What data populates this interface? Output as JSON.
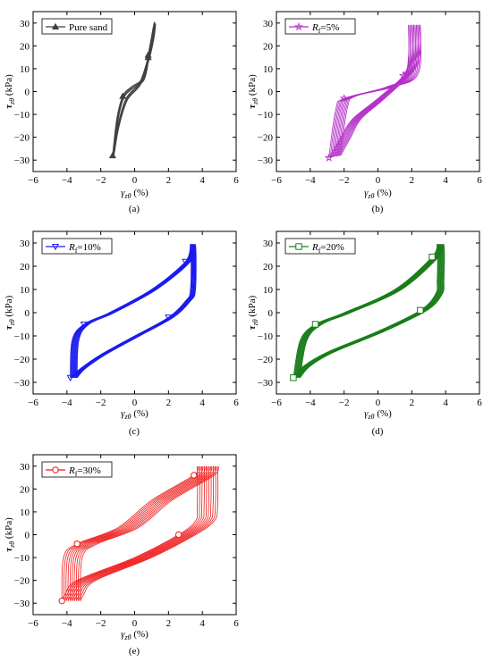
{
  "chart_data": [
    {
      "type": "line",
      "panel": "(a)",
      "caption": "(a)",
      "legend": "Pure sand",
      "color": "#404040",
      "marker": "triangle",
      "xlabel": "γzθ (%)",
      "ylabel": "τzθ (kPa)",
      "xlim": [
        -6,
        6
      ],
      "ylim": [
        -35,
        35
      ],
      "xticks": [
        -6,
        -4,
        -2,
        0,
        2,
        4,
        6
      ],
      "yticks": [
        -30,
        -20,
        -10,
        0,
        10,
        20,
        30
      ],
      "loops": 3,
      "series": [
        {
          "x": [
            -1.3,
            -1.0,
            -0.5,
            0.3,
            0.8,
            1.1,
            1.15,
            0.8,
            0.5,
            -0.2,
            -0.7,
            -1.05,
            -1.3
          ],
          "y": [
            -28,
            -15,
            -3,
            4,
            15,
            25,
            30,
            16,
            6,
            2,
            -2,
            -12,
            -28
          ]
        }
      ]
    },
    {
      "type": "line",
      "panel": "(b)",
      "caption": "(b)",
      "legend": "Rf=5%",
      "color": "#b530c8",
      "marker": "star",
      "xlabel": "γzθ (%)",
      "ylabel": "τzθ (kPa)",
      "xlim": [
        -6,
        6
      ],
      "ylim": [
        -35,
        35
      ],
      "xticks": [
        -6,
        -4,
        -2,
        0,
        2,
        4,
        6
      ],
      "yticks": [
        -30,
        -20,
        -10,
        0,
        10,
        20,
        30
      ],
      "loops": 10,
      "loop_start": {
        "x": [
          -2.9,
          -2.2,
          -1.5,
          0.0,
          1.5,
          1.8,
          1.8,
          1.7,
          0.5,
          -2.0,
          -2.5,
          -2.9
        ],
        "y": [
          -29,
          -20,
          -12,
          -3,
          7,
          15,
          29,
          8,
          2,
          -3,
          -8,
          -29
        ]
      },
      "loop_end": {
        "x": [
          -2.2,
          -1.6,
          -1.0,
          0.4,
          2.1,
          2.5,
          2.5,
          2.4,
          0.9,
          -1.3,
          -1.8,
          -2.2
        ],
        "y": [
          -28,
          -20,
          -12,
          -3,
          9,
          17,
          29,
          8,
          2,
          -2,
          -7,
          -28
        ]
      }
    },
    {
      "type": "line",
      "panel": "(c)",
      "caption": "(c)",
      "legend": "Rf=10%",
      "color": "#1c1cf0",
      "marker": "triangle-down",
      "xlabel": "γzθ (%)",
      "ylabel": "τzθ (kPa)",
      "xlim": [
        -6,
        6
      ],
      "ylim": [
        -35,
        35
      ],
      "xticks": [
        -6,
        -4,
        -2,
        0,
        2,
        4,
        6
      ],
      "yticks": [
        -30,
        -20,
        -10,
        0,
        10,
        20,
        30
      ],
      "loops": 12,
      "loop_start": {
        "x": [
          -3.8,
          -3.2,
          -2.0,
          0.0,
          2.0,
          3.0,
          3.3,
          3.3,
          3.0,
          1.0,
          -1.5,
          -3.0,
          -3.7,
          -3.8
        ],
        "y": [
          -28,
          -24,
          -18,
          -10,
          -2,
          5,
          10,
          29,
          22,
          10,
          0,
          -5,
          -12,
          -28
        ]
      },
      "loop_end": {
        "x": [
          -3.4,
          -2.9,
          -1.7,
          0.3,
          2.3,
          3.3,
          3.6,
          3.6,
          3.3,
          1.3,
          -1.2,
          -2.7,
          -3.3,
          -3.4
        ],
        "y": [
          -28,
          -24,
          -18,
          -10,
          -2,
          5,
          10,
          29,
          22,
          10,
          0,
          -5,
          -12,
          -28
        ]
      }
    },
    {
      "type": "line",
      "panel": "(d)",
      "caption": "(d)",
      "legend": "Rf=20%",
      "color": "#1a7d1a",
      "marker": "square",
      "xlabel": "γzθ (%)",
      "ylabel": "τzθ (kPa)",
      "xlim": [
        -6,
        6
      ],
      "ylim": [
        -35,
        35
      ],
      "xticks": [
        -6,
        -4,
        -2,
        0,
        2,
        4,
        6
      ],
      "yticks": [
        -30,
        -20,
        -10,
        0,
        10,
        20,
        30
      ],
      "loops": 12,
      "loop_start": {
        "x": [
          -5.0,
          -4.4,
          -3.0,
          0.0,
          2.5,
          3.4,
          3.5,
          3.5,
          3.2,
          1.0,
          -2.0,
          -3.7,
          -4.6,
          -5.0
        ],
        "y": [
          -28,
          -23,
          -17,
          -8,
          1,
          8,
          14,
          29,
          24,
          10,
          0,
          -5,
          -12,
          -28
        ]
      },
      "loop_end": {
        "x": [
          -4.6,
          -4.0,
          -2.6,
          0.4,
          2.9,
          3.8,
          3.9,
          3.9,
          3.6,
          1.4,
          -1.6,
          -3.3,
          -4.2,
          -4.6
        ],
        "y": [
          -28,
          -23,
          -17,
          -8,
          1,
          8,
          14,
          29,
          24,
          10,
          0,
          -5,
          -12,
          -28
        ]
      }
    },
    {
      "type": "line",
      "panel": "(e)",
      "caption": "(e)",
      "legend": "Rf=30%",
      "color": "#f01818",
      "marker": "circle",
      "xlabel": "γzθ (%)",
      "ylabel": "τzθ (kPa)",
      "xlim": [
        -6,
        6
      ],
      "ylim": [
        -35,
        35
      ],
      "xticks": [
        -6,
        -4,
        -2,
        0,
        2,
        4,
        6
      ],
      "yticks": [
        -30,
        -20,
        -10,
        0,
        10,
        20,
        30
      ],
      "loops": 10,
      "loop_start": {
        "x": [
          -4.3,
          -4.1,
          -3.4,
          0.0,
          2.6,
          3.6,
          3.7,
          3.7,
          3.5,
          1.0,
          -1.0,
          -3.4,
          -4.2,
          -4.3
        ],
        "y": [
          -29,
          -26,
          -20,
          -10,
          0,
          6,
          12,
          29,
          26,
          15,
          3,
          -4,
          -10,
          -29
        ]
      },
      "loop_end": {
        "x": [
          -3.2,
          -3.0,
          -2.3,
          1.0,
          3.6,
          4.7,
          4.9,
          4.9,
          4.7,
          2.2,
          0.2,
          -2.2,
          -3.1,
          -3.2
        ],
        "y": [
          -29,
          -26,
          -20,
          -10,
          0,
          6,
          12,
          29,
          26,
          15,
          3,
          -4,
          -10,
          -29
        ]
      }
    }
  ]
}
